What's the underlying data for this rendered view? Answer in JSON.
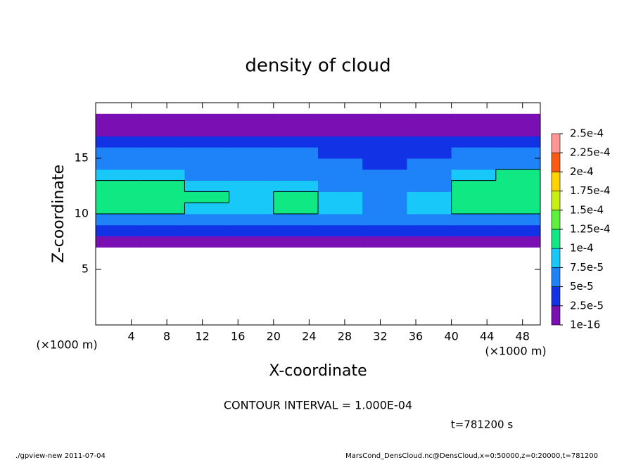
{
  "chart_data": {
    "type": "heatmap",
    "title": "density of cloud",
    "xlabel": "X-coordinate",
    "ylabel": "Z-coordinate",
    "xunit": "(×1000 m)",
    "yunit": "(×1000 m)",
    "xlim": [
      0,
      50
    ],
    "ylim": [
      0,
      20
    ],
    "xticks": [
      4,
      8,
      12,
      16,
      20,
      24,
      28,
      32,
      36,
      40,
      44,
      48
    ],
    "yticks": [
      5,
      10,
      15
    ],
    "xbins": [
      0,
      5,
      10,
      15,
      20,
      25,
      30,
      35,
      40,
      45,
      50
    ],
    "ybins": [
      7,
      8,
      9,
      10,
      11,
      12,
      13,
      14,
      15,
      16,
      17,
      18,
      19,
      20
    ],
    "values": [
      [
        1e-05,
        1e-05,
        1e-05,
        1e-05,
        1e-05,
        1e-05,
        1e-05,
        1e-05,
        1e-05,
        1e-05
      ],
      [
        3e-05,
        3e-05,
        3e-05,
        3e-05,
        3e-05,
        3e-05,
        3e-05,
        3e-05,
        3e-05,
        3e-05
      ],
      [
        7e-05,
        6e-05,
        6e-05,
        6e-05,
        6e-05,
        6e-05,
        5e-05,
        6e-05,
        6e-05,
        7e-05
      ],
      [
        0.00011,
        0.0001,
        9e-05,
        9e-05,
        0.0001,
        9e-05,
        7e-05,
        9e-05,
        0.0001,
        0.00011
      ],
      [
        0.00012,
        0.00011,
        0.0001,
        9e-05,
        0.0001,
        9e-05,
        6e-05,
        8e-05,
        0.00011,
        0.00012
      ],
      [
        0.00011,
        0.0001,
        9e-05,
        8e-05,
        9e-05,
        7e-05,
        5e-05,
        6e-05,
        0.0001,
        0.00012
      ],
      [
        8e-05,
        8e-05,
        7e-05,
        7e-05,
        6e-05,
        5e-05,
        5e-05,
        5e-05,
        8e-05,
        0.0001
      ],
      [
        6e-05,
        6e-05,
        6e-05,
        6e-05,
        5e-05,
        5e-05,
        4e-05,
        5e-05,
        6e-05,
        6e-05
      ],
      [
        5e-05,
        5e-05,
        5e-05,
        5e-05,
        5e-05,
        4e-05,
        4e-05,
        4e-05,
        5e-05,
        5e-05
      ],
      [
        3e-05,
        3e-05,
        3e-05,
        3e-05,
        3e-05,
        3e-05,
        3e-05,
        3e-05,
        3e-05,
        3e-05
      ],
      [
        1e-05,
        1e-05,
        1e-05,
        1e-05,
        1e-05,
        1e-05,
        2e-05,
        1e-05,
        1e-05,
        1e-05
      ],
      [
        1e-05,
        1e-05,
        1e-05,
        1e-05,
        1e-05,
        1e-05,
        1e-05,
        1e-05,
        1e-05,
        1e-05
      ],
      [
        null,
        null,
        null,
        null,
        null,
        null,
        null,
        null,
        null,
        null
      ]
    ],
    "colorbar": {
      "levels": [
        {
          "value": 1e-16,
          "label": "1e-16"
        },
        {
          "value": 2.5e-05,
          "label": "2.5e-5"
        },
        {
          "value": 5e-05,
          "label": "5e-5"
        },
        {
          "value": 7.5e-05,
          "label": "7.5e-5"
        },
        {
          "value": 0.0001,
          "label": "1e-4"
        },
        {
          "value": 0.000125,
          "label": "1.25e-4"
        },
        {
          "value": 0.00015,
          "label": "1.5e-4"
        },
        {
          "value": 0.000175,
          "label": "1.75e-4"
        },
        {
          "value": 0.0002,
          "label": "2e-4"
        },
        {
          "value": 0.000225,
          "label": "2.25e-4"
        },
        {
          "value": 0.00025,
          "label": "2.5e-4"
        }
      ],
      "colors": [
        "#7a0fb4",
        "#1232e6",
        "#1e82f8",
        "#18c8f8",
        "#10e884",
        "#5ef03c",
        "#c8f014",
        "#ffd200",
        "#ff5a14",
        "#ff9696"
      ]
    },
    "contour_interval": 0.0001,
    "contour_label": "CONTOUR INTERVAL = 1.000E-04",
    "time_label": "t=781200 s",
    "footer_left": "./gpview-new  2011-07-04",
    "footer_right": "MarsCond_DensCloud.nc@DensCloud,x=0:50000,z=0:20000,t=781200"
  }
}
